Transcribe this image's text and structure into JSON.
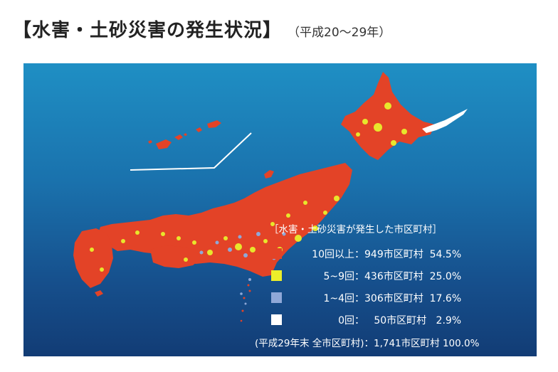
{
  "title": "【水害・土砂災害の発生状況】",
  "subtitle": "（平成20〜29年）",
  "legend": {
    "title": "［水害・土砂災害が発生した市区町村］",
    "items": [
      {
        "label": "10回以上：",
        "count": "949市区町村",
        "percent": "54.5%",
        "color": "#e34327"
      },
      {
        "label": "5~9回：",
        "count": "436市区町村",
        "percent": "25.0%",
        "color": "#ecee2a"
      },
      {
        "label": "1~4回：",
        "count": "306市区町村",
        "percent": "17.6%",
        "color": "#8fa8d8"
      },
      {
        "label": "0回：",
        "count": "50市区町村",
        "percent": "2.9%",
        "color": "#ffffff"
      }
    ],
    "total": "(平成29年末 全市区町村)：1,741市区町村 100.0%"
  },
  "colors": {
    "land": "#e34327",
    "yellow": "#e8e62c",
    "blue": "#8fa8d8",
    "sea_top": "#1f8fc4",
    "sea_bottom": "#123c75"
  }
}
